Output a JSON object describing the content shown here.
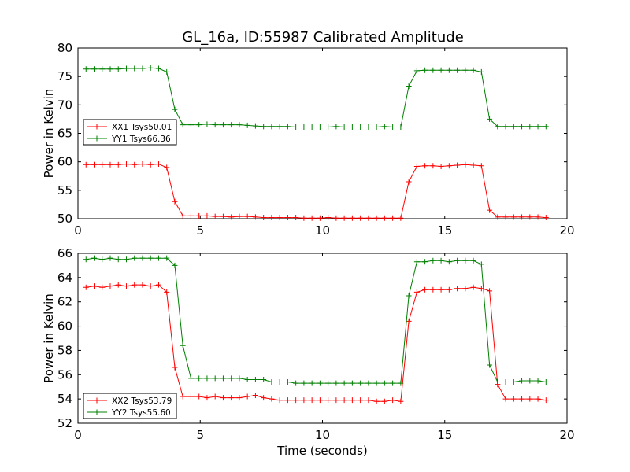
{
  "figure": {
    "title": "GL_16a, ID:55987 Calibrated Amplitude"
  },
  "chart_data": [
    {
      "type": "line",
      "title": "GL_16a, ID:55987 Calibrated Amplitude",
      "xlabel": "",
      "ylabel": "Power in Kelvin",
      "xlim": [
        0,
        20
      ],
      "ylim": [
        50,
        80
      ],
      "xticks": [
        0,
        5,
        10,
        15,
        20
      ],
      "yticks": [
        50,
        55,
        60,
        65,
        70,
        75,
        80
      ],
      "x_tick_labels_shown": true,
      "grid": false,
      "legend_position": "center-left",
      "x": [
        0.33,
        0.66,
        0.99,
        1.32,
        1.65,
        1.98,
        2.31,
        2.64,
        2.97,
        3.3,
        3.63,
        3.96,
        4.29,
        4.62,
        4.95,
        5.28,
        5.61,
        5.94,
        6.27,
        6.6,
        6.93,
        7.26,
        7.59,
        7.92,
        8.25,
        8.58,
        8.91,
        9.24,
        9.57,
        9.9,
        10.23,
        10.56,
        10.89,
        11.22,
        11.55,
        11.88,
        12.21,
        12.54,
        12.87,
        13.2,
        13.53,
        13.86,
        14.19,
        14.52,
        14.85,
        15.18,
        15.51,
        15.84,
        16.17,
        16.5,
        16.83,
        17.16,
        17.49,
        17.82,
        18.15,
        18.48,
        18.81,
        19.14
      ],
      "series": [
        {
          "name": "XX1 Tsys50.01",
          "color": "#ff0000",
          "values": [
            59.5,
            59.5,
            59.5,
            59.5,
            59.5,
            59.6,
            59.5,
            59.6,
            59.5,
            59.6,
            59.0,
            53.0,
            50.5,
            50.5,
            50.5,
            50.5,
            50.4,
            50.4,
            50.3,
            50.4,
            50.4,
            50.3,
            50.2,
            50.2,
            50.2,
            50.2,
            50.2,
            50.1,
            50.1,
            50.1,
            50.2,
            50.1,
            50.1,
            50.1,
            50.1,
            50.1,
            50.1,
            50.1,
            50.1,
            50.1,
            56.5,
            59.2,
            59.3,
            59.3,
            59.2,
            59.3,
            59.4,
            59.5,
            59.4,
            59.3,
            51.5,
            50.3,
            50.3,
            50.3,
            50.3,
            50.3,
            50.3,
            50.2
          ]
        },
        {
          "name": "YY1 Tsys66.36",
          "color": "#008000",
          "values": [
            76.3,
            76.3,
            76.3,
            76.3,
            76.3,
            76.4,
            76.4,
            76.4,
            76.5,
            76.4,
            75.8,
            69.2,
            66.5,
            66.5,
            66.5,
            66.6,
            66.5,
            66.5,
            66.5,
            66.5,
            66.4,
            66.3,
            66.2,
            66.2,
            66.2,
            66.2,
            66.1,
            66.1,
            66.1,
            66.1,
            66.1,
            66.2,
            66.1,
            66.1,
            66.1,
            66.1,
            66.1,
            66.2,
            66.1,
            66.1,
            73.3,
            76.0,
            76.1,
            76.1,
            76.1,
            76.1,
            76.1,
            76.1,
            76.1,
            75.8,
            67.5,
            66.2,
            66.2,
            66.2,
            66.2,
            66.2,
            66.2,
            66.2
          ]
        }
      ]
    },
    {
      "type": "line",
      "title": "",
      "xlabel": "Time (seconds)",
      "ylabel": "Power in Kelvin",
      "xlim": [
        0,
        20
      ],
      "ylim": [
        52,
        66
      ],
      "xticks": [
        0,
        5,
        10,
        15,
        20
      ],
      "yticks": [
        52,
        54,
        56,
        58,
        60,
        62,
        64,
        66
      ],
      "x_tick_labels_shown": true,
      "grid": false,
      "legend_position": "lower-left",
      "x": [
        0.33,
        0.66,
        0.99,
        1.32,
        1.65,
        1.98,
        2.31,
        2.64,
        2.97,
        3.3,
        3.63,
        3.96,
        4.29,
        4.62,
        4.95,
        5.28,
        5.61,
        5.94,
        6.27,
        6.6,
        6.93,
        7.26,
        7.59,
        7.92,
        8.25,
        8.58,
        8.91,
        9.24,
        9.57,
        9.9,
        10.23,
        10.56,
        10.89,
        11.22,
        11.55,
        11.88,
        12.21,
        12.54,
        12.87,
        13.2,
        13.53,
        13.86,
        14.19,
        14.52,
        14.85,
        15.18,
        15.51,
        15.84,
        16.17,
        16.5,
        16.83,
        17.16,
        17.49,
        17.82,
        18.15,
        18.48,
        18.81,
        19.14
      ],
      "series": [
        {
          "name": "XX2 Tsys53.79",
          "color": "#ff0000",
          "values": [
            63.2,
            63.3,
            63.2,
            63.3,
            63.4,
            63.3,
            63.4,
            63.4,
            63.3,
            63.4,
            62.8,
            56.6,
            54.2,
            54.2,
            54.2,
            54.1,
            54.2,
            54.1,
            54.1,
            54.1,
            54.2,
            54.3,
            54.1,
            54.0,
            53.9,
            53.9,
            53.9,
            53.9,
            53.9,
            53.9,
            53.9,
            53.9,
            53.9,
            53.9,
            53.9,
            53.9,
            53.8,
            53.8,
            53.9,
            53.8,
            60.4,
            62.8,
            63.0,
            63.0,
            63.0,
            63.0,
            63.1,
            63.1,
            63.2,
            63.1,
            62.9,
            55.2,
            54.0,
            54.0,
            54.0,
            54.0,
            54.0,
            53.9
          ]
        },
        {
          "name": "YY2 Tsys55.60",
          "color": "#008000",
          "values": [
            65.5,
            65.6,
            65.5,
            65.6,
            65.5,
            65.5,
            65.6,
            65.6,
            65.6,
            65.6,
            65.6,
            65.0,
            58.4,
            55.7,
            55.7,
            55.7,
            55.7,
            55.7,
            55.7,
            55.7,
            55.6,
            55.6,
            55.6,
            55.4,
            55.4,
            55.4,
            55.3,
            55.3,
            55.3,
            55.3,
            55.3,
            55.3,
            55.3,
            55.3,
            55.3,
            55.3,
            55.3,
            55.3,
            55.3,
            55.3,
            62.5,
            65.3,
            65.3,
            65.4,
            65.4,
            65.3,
            65.4,
            65.4,
            65.4,
            65.1,
            56.8,
            55.4,
            55.4,
            55.4,
            55.5,
            55.5,
            55.5,
            55.4
          ]
        }
      ]
    }
  ]
}
